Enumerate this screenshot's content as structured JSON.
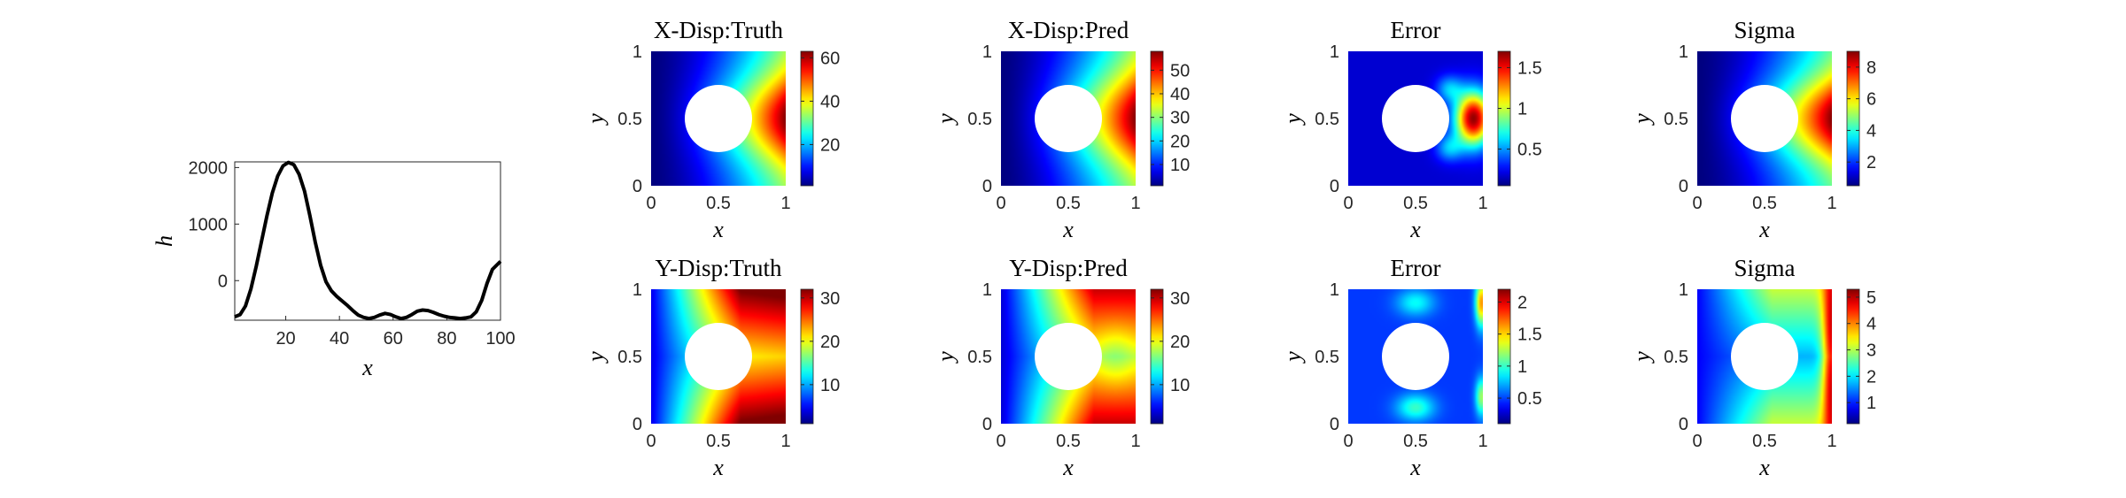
{
  "chart_data": [
    {
      "type": "line",
      "xlabel": "x",
      "ylabel": "h",
      "xlim": [
        1,
        100
      ],
      "ylim": [
        -700,
        2100
      ],
      "xticks": [
        "20",
        "40",
        "60",
        "80",
        "100"
      ],
      "yticks": [
        "0",
        "1000",
        "2000"
      ],
      "grid": false,
      "series": [
        {
          "x": [
            1,
            3,
            5,
            7,
            9,
            11,
            13,
            15,
            17,
            19,
            21,
            23,
            25,
            27,
            29,
            31,
            33,
            35,
            37,
            39,
            41,
            43,
            45,
            47,
            49,
            51,
            53,
            55,
            57,
            59,
            61,
            63,
            65,
            67,
            69,
            71,
            73,
            75,
            77,
            79,
            81,
            83,
            85,
            87,
            89,
            91,
            93,
            95,
            97,
            100
          ],
          "y": [
            -640,
            -600,
            -450,
            -150,
            250,
            700,
            1150,
            1550,
            1850,
            2030,
            2090,
            2050,
            1880,
            1580,
            1150,
            680,
            270,
            -20,
            -180,
            -280,
            -360,
            -440,
            -530,
            -610,
            -650,
            -670,
            -650,
            -610,
            -580,
            -600,
            -640,
            -670,
            -650,
            -600,
            -540,
            -520,
            -530,
            -560,
            -600,
            -630,
            -650,
            -660,
            -670,
            -660,
            -640,
            -550,
            -350,
            -50,
            200,
            340
          ]
        }
      ]
    },
    {
      "type": "heatmap",
      "title": "X-Disp:Truth",
      "xlabel": "x",
      "ylabel": "y",
      "xlim": [
        0,
        1
      ],
      "ylim": [
        0,
        1
      ],
      "xticks": [
        "0",
        "0.5",
        "1"
      ],
      "yticks": [
        "0",
        "0.5",
        "1"
      ],
      "colormap": "jet",
      "clim": [
        1,
        63
      ],
      "colorbar_ticks": [
        "20",
        "40",
        "60"
      ],
      "hole": {
        "center": [
          0.5,
          0.5
        ],
        "radius": 0.25
      }
    },
    {
      "type": "heatmap",
      "title": "X-Disp:Pred",
      "xlabel": "x",
      "ylabel": "y",
      "xlim": [
        0,
        1
      ],
      "ylim": [
        0,
        1
      ],
      "xticks": [
        "0",
        "0.5",
        "1"
      ],
      "yticks": [
        "0",
        "0.5",
        "1"
      ],
      "colormap": "jet",
      "clim": [
        1,
        58
      ],
      "colorbar_ticks": [
        "10",
        "20",
        "30",
        "40",
        "50"
      ],
      "hole": {
        "center": [
          0.5,
          0.5
        ],
        "radius": 0.25
      }
    },
    {
      "type": "heatmap",
      "title": "Error",
      "xlabel": "x",
      "ylabel": "y",
      "xlim": [
        0,
        1
      ],
      "ylim": [
        0,
        1
      ],
      "xticks": [
        "0",
        "0.5",
        "1"
      ],
      "yticks": [
        "0",
        "0.5",
        "1"
      ],
      "colormap": "jet",
      "clim": [
        0.05,
        1.7
      ],
      "colorbar_ticks": [
        "0.5",
        "1",
        "1.5"
      ],
      "hole": {
        "center": [
          0.5,
          0.5
        ],
        "radius": 0.25
      }
    },
    {
      "type": "heatmap",
      "title": "Sigma",
      "xlabel": "x",
      "ylabel": "y",
      "xlim": [
        0,
        1
      ],
      "ylim": [
        0,
        1
      ],
      "xticks": [
        "0",
        "0.5",
        "1"
      ],
      "yticks": [
        "0",
        "0.5",
        "1"
      ],
      "colormap": "jet",
      "clim": [
        0.5,
        9
      ],
      "colorbar_ticks": [
        "2",
        "4",
        "6",
        "8"
      ],
      "hole": {
        "center": [
          0.5,
          0.5
        ],
        "radius": 0.25
      }
    },
    {
      "type": "heatmap",
      "title": "Y-Disp:Truth",
      "xlabel": "x",
      "ylabel": "y",
      "xlim": [
        0,
        1
      ],
      "ylim": [
        0,
        1
      ],
      "xticks": [
        "0",
        "0.5",
        "1"
      ],
      "yticks": [
        "0",
        "0.5",
        "1"
      ],
      "colormap": "jet",
      "clim": [
        1,
        32
      ],
      "colorbar_ticks": [
        "10",
        "20",
        "30"
      ],
      "hole": {
        "center": [
          0.5,
          0.5
        ],
        "radius": 0.25
      }
    },
    {
      "type": "heatmap",
      "title": "Y-Disp:Pred",
      "xlabel": "x",
      "ylabel": "y",
      "xlim": [
        0,
        1
      ],
      "ylim": [
        0,
        1
      ],
      "xticks": [
        "0",
        "0.5",
        "1"
      ],
      "yticks": [
        "0",
        "0.5",
        "1"
      ],
      "colormap": "jet",
      "clim": [
        1,
        32
      ],
      "colorbar_ticks": [
        "10",
        "20",
        "30"
      ],
      "hole": {
        "center": [
          0.5,
          0.5
        ],
        "radius": 0.25
      }
    },
    {
      "type": "heatmap",
      "title": "Error",
      "xlabel": "x",
      "ylabel": "y",
      "xlim": [
        0,
        1
      ],
      "ylim": [
        0,
        1
      ],
      "xticks": [
        "0",
        "0.5",
        "1"
      ],
      "yticks": [
        "0",
        "0.5",
        "1"
      ],
      "colormap": "jet",
      "clim": [
        0.1,
        2.2
      ],
      "colorbar_ticks": [
        "0.5",
        "1",
        "1.5",
        "2"
      ],
      "hole": {
        "center": [
          0.5,
          0.5
        ],
        "radius": 0.25
      }
    },
    {
      "type": "heatmap",
      "title": "Sigma",
      "xlabel": "x",
      "ylabel": "y",
      "xlim": [
        0,
        1
      ],
      "ylim": [
        0,
        1
      ],
      "xticks": [
        "0",
        "0.5",
        "1"
      ],
      "yticks": [
        "0",
        "0.5",
        "1"
      ],
      "colormap": "jet",
      "clim": [
        0.2,
        5.3
      ],
      "colorbar_ticks": [
        "1",
        "2",
        "3",
        "4",
        "5"
      ],
      "hole": {
        "center": [
          0.5,
          0.5
        ],
        "radius": 0.25
      }
    }
  ]
}
